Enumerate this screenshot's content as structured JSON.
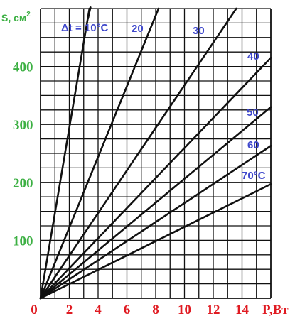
{
  "chart_data": {
    "type": "line",
    "ylabel": "S, см",
    "ylabel_sup": "2",
    "xlabel": "P,Вт",
    "xlim": [
      0,
      16
    ],
    "ylim": [
      0,
      500
    ],
    "x_ticks": [
      0,
      2,
      4,
      6,
      8,
      10,
      12,
      14
    ],
    "y_ticks": [
      100,
      200,
      300,
      400
    ],
    "grid": true,
    "colors": {
      "x_axis_text": "#e01b22",
      "y_axis_text": "#3cb043",
      "series_labels": "#3f48cc",
      "lines": "#111111"
    },
    "series": [
      {
        "name": "Δt = 10°C",
        "points": [
          [
            0,
            0
          ],
          [
            3.4,
            500
          ]
        ]
      },
      {
        "name": "20",
        "points": [
          [
            0,
            0
          ],
          [
            8.2,
            500
          ]
        ]
      },
      {
        "name": "30",
        "points": [
          [
            0,
            0
          ],
          [
            13.6,
            500
          ]
        ]
      },
      {
        "name": "40",
        "points": [
          [
            0,
            0
          ],
          [
            16,
            415
          ]
        ]
      },
      {
        "name": "50",
        "points": [
          [
            0,
            0
          ],
          [
            16,
            330
          ]
        ]
      },
      {
        "name": "60",
        "points": [
          [
            0,
            0
          ],
          [
            16,
            263
          ]
        ]
      },
      {
        "name": "70°C",
        "points": [
          [
            0,
            0
          ],
          [
            16,
            197
          ]
        ]
      }
    ]
  }
}
